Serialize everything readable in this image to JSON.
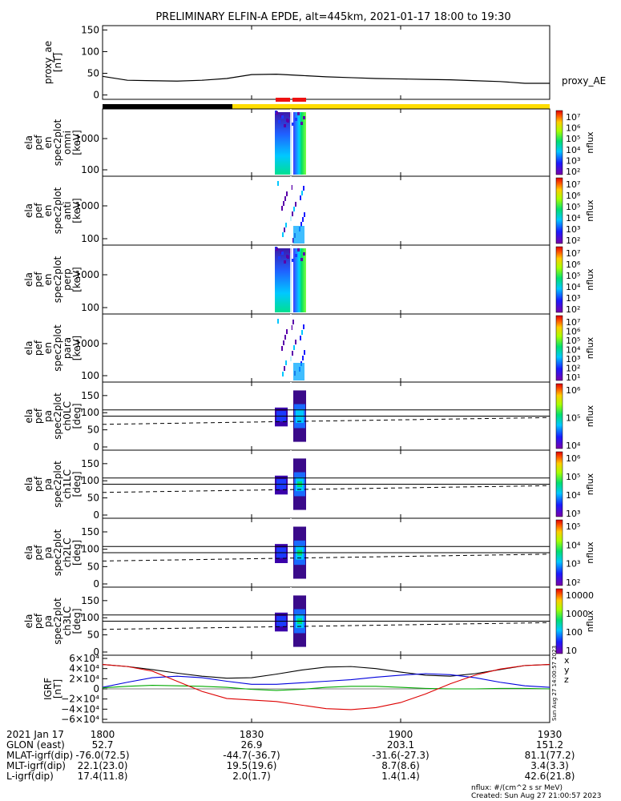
{
  "title": "PRELIMINARY ELFIN-A EPDE, alt=445km, 2021-01-17 18:00 to 19:30",
  "colors": {
    "night_bar": "#000000",
    "day_bar": "#ffdd00",
    "science_marker": "#ee1111",
    "bx": "#0000dd",
    "by": "#00aa00",
    "bz": "#dd0000",
    "bmag": "#000000"
  },
  "chart_data": [
    {
      "type": "line",
      "ylabel": [
        "proxy_ae",
        "[nT]"
      ],
      "legend": "proxy_AE",
      "ylim": [
        -10,
        160
      ],
      "yticks": [
        0,
        50,
        100,
        150
      ],
      "x": [
        0,
        5,
        10,
        15,
        20,
        25,
        30,
        35,
        40,
        45,
        50,
        55,
        60,
        65,
        70,
        75,
        80,
        85,
        90
      ],
      "values": [
        43,
        34,
        33,
        32,
        34,
        38,
        47,
        48,
        45,
        42,
        40,
        38,
        37,
        36,
        35,
        33,
        31,
        27,
        27
      ]
    },
    {
      "type": "heatmap",
      "ylabel": [
        "ela",
        "pef",
        "en",
        "spec2plot",
        "omni",
        "[keV]"
      ],
      "log_y": true,
      "yticks": [
        "100",
        "1000"
      ],
      "colorbar": {
        "label": "nflux",
        "ticks": [
          "10⁷",
          "10⁶",
          "10⁵",
          "10⁴",
          "10³",
          "10²"
        ]
      }
    },
    {
      "type": "heatmap",
      "ylabel": [
        "ela",
        "pef",
        "en",
        "spec2plot",
        "anti",
        "[keV]"
      ],
      "log_y": true,
      "yticks": [
        "100",
        "1000"
      ],
      "colorbar": {
        "label": "nflux",
        "ticks": [
          "10⁷",
          "10⁶",
          "10⁵",
          "10⁴",
          "10³",
          "10²"
        ]
      }
    },
    {
      "type": "heatmap",
      "ylabel": [
        "ela",
        "pef",
        "en",
        "spec2plot",
        "perp",
        "[keV]"
      ],
      "log_y": true,
      "yticks": [
        "100",
        "1000"
      ],
      "colorbar": {
        "label": "nflux",
        "ticks": [
          "10⁷",
          "10⁶",
          "10⁵",
          "10⁴",
          "10³",
          "10²"
        ]
      }
    },
    {
      "type": "heatmap",
      "ylabel": [
        "ela",
        "pef",
        "en",
        "spec2plot",
        "para",
        "[keV]"
      ],
      "log_y": true,
      "yticks": [
        "100",
        "1000"
      ],
      "colorbar": {
        "label": "nflux",
        "ticks": [
          "10⁷",
          "10⁶",
          "10⁵",
          "10⁴",
          "10³",
          "10²",
          "10¹"
        ]
      }
    },
    {
      "type": "heatmap",
      "ylabel": [
        "ela",
        "pef",
        "pa",
        "spec2plot",
        "ch0LC",
        "[deg]"
      ],
      "yticks": [
        "0",
        "50",
        "100",
        "150"
      ],
      "colorbar": {
        "label": "nflux",
        "ticks": [
          "10⁶",
          "10⁵",
          "10⁴"
        ]
      }
    },
    {
      "type": "heatmap",
      "ylabel": [
        "ela",
        "pef",
        "pa",
        "spec2plot",
        "ch1LC",
        "[deg]"
      ],
      "yticks": [
        "0",
        "50",
        "100",
        "150"
      ],
      "colorbar": {
        "label": "nflux",
        "ticks": [
          "10⁶",
          "10⁵",
          "10⁴",
          "10³"
        ]
      }
    },
    {
      "type": "heatmap",
      "ylabel": [
        "ela",
        "pef",
        "pa",
        "spec2plot",
        "ch2LC",
        "[deg]"
      ],
      "yticks": [
        "0",
        "50",
        "100",
        "150"
      ],
      "colorbar": {
        "label": "nflux",
        "ticks": [
          "10⁵",
          "10⁴",
          "10³",
          "10²"
        ]
      }
    },
    {
      "type": "heatmap",
      "ylabel": [
        "ela",
        "pef",
        "pa",
        "spec2plot",
        "ch3LC",
        "[deg]"
      ],
      "yticks": [
        "0",
        "50",
        "100",
        "150"
      ],
      "colorbar": {
        "label": "nflux",
        "ticks": [
          "10000",
          "1000",
          "100",
          "10"
        ]
      }
    },
    {
      "type": "line",
      "ylabel": [
        "IGRF",
        "[nT]"
      ],
      "ylim": [
        -60000,
        60000
      ],
      "yticks": [
        "6×10⁴",
        "4×10⁴",
        "2×10⁴",
        "0",
        "−2×10⁴",
        "−4×10⁴",
        "−6×10⁴"
      ],
      "legend": [
        "x",
        "y",
        "z"
      ],
      "x": [
        0,
        5,
        10,
        15,
        20,
        25,
        30,
        35,
        40,
        45,
        50,
        55,
        60,
        65,
        70,
        75,
        80,
        85,
        90
      ],
      "series": [
        {
          "values": [
            48000,
            44000,
            38000,
            31000,
            25000,
            21000,
            22000,
            29000,
            37000,
            43000,
            44000,
            40000,
            33000,
            27000,
            25000,
            30000,
            38000,
            46000,
            48000
          ]
        },
        {
          "values": [
            3000,
            13000,
            22000,
            25000,
            22000,
            15000,
            9000,
            9000,
            12000,
            15000,
            18000,
            23000,
            27000,
            30000,
            28000,
            22000,
            13000,
            6000,
            3000
          ]
        },
        {
          "values": [
            2000,
            5000,
            7000,
            6000,
            5000,
            3000,
            -1000,
            -3000,
            -1000,
            3000,
            5000,
            5000,
            3000,
            1000,
            0,
            0,
            1000,
            1000,
            0
          ]
        },
        {
          "values": [
            48000,
            44000,
            35000,
            15000,
            -5000,
            -19000,
            -22000,
            -25000,
            -32000,
            -39000,
            -41000,
            -37000,
            -27000,
            -10000,
            10000,
            27000,
            39000,
            46000,
            48000
          ]
        }
      ]
    }
  ],
  "footer": {
    "rows": [
      [
        "2021 Jan 17",
        "1800",
        "1830",
        "1900",
        "1930"
      ],
      [
        "GLON (east)",
        "52.7",
        "26.9",
        "203.1",
        "151.2"
      ],
      [
        "MLAT-igrf(dip)",
        "-76.0(72.5)",
        "-44.7(-36.7)",
        "-31.6(-27.3)",
        "81.1(77.2)"
      ],
      [
        "MLT-igrf(dip)",
        "22.1(23.0)",
        "19.5(19.6)",
        "8.7(8.6)",
        "3.4(3.3)"
      ],
      [
        "L-igrf(dip)",
        "17.4(11.8)",
        "2.0(1.7)",
        "1.4(1.4)",
        "42.6(21.8)"
      ]
    ],
    "units": "nflux: #/(cm^2 s sr MeV)",
    "created": "Created: Sun Aug 27 21:00:57 2023",
    "side_stamp": "Sun Aug 27 14:00:57 2023"
  }
}
